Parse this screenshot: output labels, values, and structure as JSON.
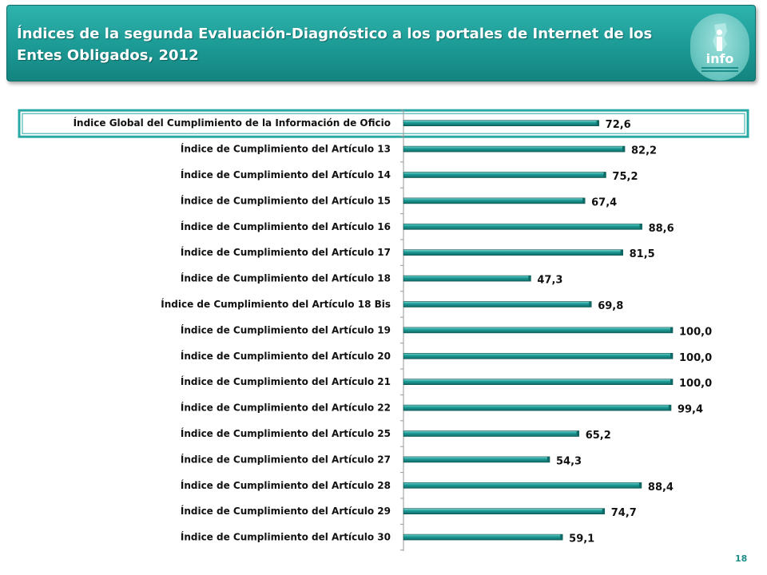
{
  "header": {
    "title": "Índices de la segunda Evaluación-Diagnóstico a los portales de Internet de los Entes Obligados, 2012"
  },
  "logo": {
    "label": "info",
    "colors": {
      "circle": "#6cc7c2",
      "text": "#ffffff",
      "accent": "#1c8d88"
    }
  },
  "page_number": "18",
  "colors": {
    "header_bg": "#1c9a95",
    "bar": "#1e9d98",
    "bar_dark": "#0e6a66",
    "highlight_border": "#2aa8a3"
  },
  "chart_data": {
    "type": "bar",
    "orientation": "horizontal",
    "categories": [
      "Índice Global del Cumplimiento de la Información de Oficio",
      "Índice de Cumplimiento del Artículo 13",
      "Índice de Cumplimiento del Artículo 14",
      "Índice de Cumplimiento del Artículo 15",
      "Índice de Cumplimiento del Artículo 16",
      "Índice de Cumplimiento del Artículo 17",
      "Índice de Cumplimiento del Artículo 18",
      "Índice de Cumplimiento del Artículo 18 Bis",
      "Índice de Cumplimiento del Artículo 19",
      "Índice de Cumplimiento del Artículo 20",
      "Índice de Cumplimiento del Artículo 21",
      "Índice de Cumplimiento del Artículo 22",
      "Índice de Cumplimiento del Artículo 25",
      "Índice de Cumplimiento del Artículo 27",
      "Índice de Cumplimiento del Artículo 28",
      "Índice de Cumplimiento del Artículo 29",
      "Índice de Cumplimiento del Artículo 30"
    ],
    "values": [
      72.6,
      82.2,
      75.2,
      67.4,
      88.6,
      81.5,
      47.3,
      69.8,
      100.0,
      100.0,
      100.0,
      99.4,
      65.2,
      54.3,
      88.4,
      74.7,
      59.1
    ],
    "value_labels": [
      "72,6",
      "82,2",
      "75,2",
      "67,4",
      "88,6",
      "81,5",
      "47,3",
      "69,8",
      "100,0",
      "100,0",
      "100,0",
      "99,4",
      "65,2",
      "54,3",
      "88,4",
      "74,7",
      "59,1"
    ],
    "xlim": [
      0,
      100
    ],
    "highlighted_category_index": 0,
    "grid": false,
    "legend": "none"
  }
}
